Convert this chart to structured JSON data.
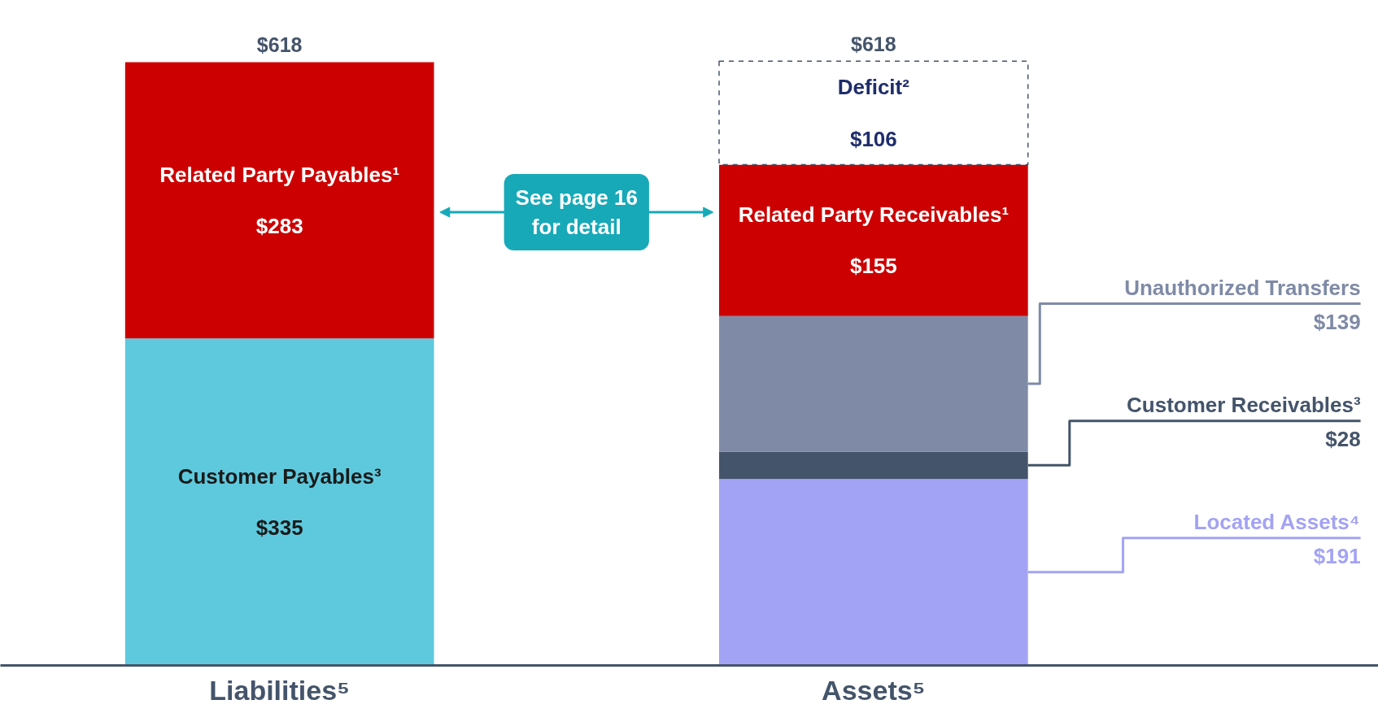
{
  "chart_data": {
    "type": "bar",
    "stacked": true,
    "categories": [
      "Liabilities⁵",
      "Assets⁵"
    ],
    "series": [
      {
        "name": "Customer Payables³",
        "color": "#5ec9dd",
        "values": [
          335,
          null
        ],
        "value_labels": [
          "$335",
          null
        ]
      },
      {
        "name": "Related Party Payables¹",
        "color": "#cc0000",
        "values": [
          283,
          null
        ],
        "value_labels": [
          "$283",
          null
        ]
      },
      {
        "name": "Located Assets⁴",
        "color": "#a3a3f5",
        "values": [
          null,
          191
        ],
        "value_labels": [
          null,
          "$191"
        ]
      },
      {
        "name": "Customer Receivables³",
        "color": "#44546a",
        "values": [
          null,
          28
        ],
        "value_labels": [
          null,
          "$28"
        ]
      },
      {
        "name": "Unauthorized Transfers",
        "color": "#7f8aa6",
        "values": [
          null,
          139
        ],
        "value_labels": [
          null,
          "$139"
        ]
      },
      {
        "name": "Related Party Receivables¹",
        "color": "#cc0000",
        "values": [
          null,
          155
        ],
        "value_labels": [
          null,
          "$155"
        ]
      },
      {
        "name": "Deficit²",
        "color": "#ffffff",
        "values": [
          null,
          106
        ],
        "value_labels": [
          null,
          "$106"
        ],
        "line_style": "dashed"
      }
    ],
    "totals": [
      "$618",
      "$618"
    ],
    "annotations": [
      "See page 16 for detail"
    ]
  }
}
